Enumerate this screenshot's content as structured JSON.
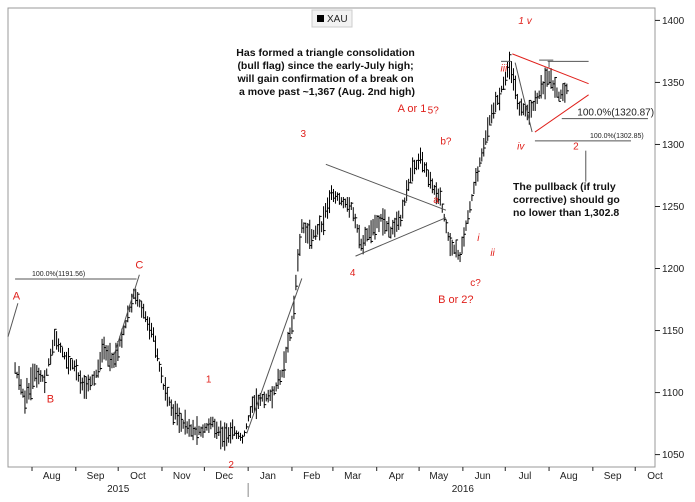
{
  "chart_data": {
    "type": "ohlc",
    "legend": "XAU",
    "y_ticks": [
      1050,
      1100,
      1150,
      1200,
      1250,
      1300,
      1350,
      1400
    ],
    "ylim": [
      1040,
      1410
    ],
    "month_ticks": [
      "Aug",
      "Sep",
      "Oct",
      "Nov",
      "Dec",
      "Jan",
      "Feb",
      "Mar",
      "Apr",
      "May",
      "Jun",
      "Jul",
      "Aug",
      "Sep",
      "Oct"
    ],
    "year_labels": [
      "2015",
      "2016"
    ],
    "series_close": [
      {
        "date": "2015-07-20",
        "value": 1120
      },
      {
        "date": "2015-07-27",
        "value": 1095
      },
      {
        "date": "2015-08-03",
        "value": 1115
      },
      {
        "date": "2015-08-10",
        "value": 1110
      },
      {
        "date": "2015-08-17",
        "value": 1145
      },
      {
        "date": "2015-08-24",
        "value": 1130
      },
      {
        "date": "2015-08-31",
        "value": 1120
      },
      {
        "date": "2015-09-07",
        "value": 1105
      },
      {
        "date": "2015-09-14",
        "value": 1110
      },
      {
        "date": "2015-09-21",
        "value": 1135
      },
      {
        "date": "2015-09-28",
        "value": 1125
      },
      {
        "date": "2015-10-05",
        "value": 1150
      },
      {
        "date": "2015-10-12",
        "value": 1180
      },
      {
        "date": "2015-10-19",
        "value": 1165
      },
      {
        "date": "2015-10-26",
        "value": 1145
      },
      {
        "date": "2015-11-02",
        "value": 1105
      },
      {
        "date": "2015-11-09",
        "value": 1085
      },
      {
        "date": "2015-11-16",
        "value": 1075
      },
      {
        "date": "2015-11-23",
        "value": 1068
      },
      {
        "date": "2015-11-30",
        "value": 1070
      },
      {
        "date": "2015-12-07",
        "value": 1075
      },
      {
        "date": "2015-12-14",
        "value": 1065
      },
      {
        "date": "2015-12-21",
        "value": 1070
      },
      {
        "date": "2015-12-28",
        "value": 1062
      },
      {
        "date": "2016-01-04",
        "value": 1090
      },
      {
        "date": "2016-01-11",
        "value": 1095
      },
      {
        "date": "2016-01-18",
        "value": 1098
      },
      {
        "date": "2016-01-25",
        "value": 1115
      },
      {
        "date": "2016-02-01",
        "value": 1155
      },
      {
        "date": "2016-02-08",
        "value": 1235
      },
      {
        "date": "2016-02-15",
        "value": 1225
      },
      {
        "date": "2016-02-22",
        "value": 1235
      },
      {
        "date": "2016-02-29",
        "value": 1260
      },
      {
        "date": "2016-03-07",
        "value": 1255
      },
      {
        "date": "2016-03-14",
        "value": 1250
      },
      {
        "date": "2016-03-21",
        "value": 1220
      },
      {
        "date": "2016-03-28",
        "value": 1230
      },
      {
        "date": "2016-04-04",
        "value": 1240
      },
      {
        "date": "2016-04-11",
        "value": 1230
      },
      {
        "date": "2016-04-18",
        "value": 1240
      },
      {
        "date": "2016-04-25",
        "value": 1275
      },
      {
        "date": "2016-05-02",
        "value": 1290
      },
      {
        "date": "2016-05-09",
        "value": 1270
      },
      {
        "date": "2016-05-16",
        "value": 1255
      },
      {
        "date": "2016-05-23",
        "value": 1220
      },
      {
        "date": "2016-05-30",
        "value": 1210
      },
      {
        "date": "2016-06-06",
        "value": 1250
      },
      {
        "date": "2016-06-13",
        "value": 1285
      },
      {
        "date": "2016-06-20",
        "value": 1320
      },
      {
        "date": "2016-06-27",
        "value": 1340
      },
      {
        "date": "2016-07-04",
        "value": 1365
      },
      {
        "date": "2016-07-11",
        "value": 1330
      },
      {
        "date": "2016-07-18",
        "value": 1325
      },
      {
        "date": "2016-07-25",
        "value": 1340
      },
      {
        "date": "2016-08-01",
        "value": 1355
      },
      {
        "date": "2016-08-08",
        "value": 1340
      },
      {
        "date": "2016-08-15",
        "value": 1345
      }
    ],
    "wave_labels": [
      {
        "label": "A",
        "date": "2015-07-21",
        "value": 1175
      },
      {
        "label": "B",
        "date": "2015-08-14",
        "value": 1092
      },
      {
        "label": "C",
        "date": "2015-10-16",
        "value": 1200
      },
      {
        "label": "1",
        "date": "2015-12-04",
        "value": 1108
      },
      {
        "label": "2",
        "date": "2015-12-20",
        "value": 1039
      },
      {
        "label": "3",
        "date": "2016-02-09",
        "value": 1306
      },
      {
        "label": "4",
        "date": "2016-03-15",
        "value": 1194
      },
      {
        "label": "A or 1",
        "date": "2016-04-26",
        "value": 1326
      },
      {
        "label": "5?",
        "date": "2016-05-11",
        "value": 1325
      },
      {
        "label": "b?",
        "date": "2016-05-20",
        "value": 1300
      },
      {
        "label": "a",
        "date": "2016-05-13",
        "value": 1253
      },
      {
        "label": "c?",
        "date": "2016-06-10",
        "value": 1186
      },
      {
        "label": "B or 2?",
        "date": "2016-05-27",
        "value": 1172
      },
      {
        "label": "i",
        "date": "2016-06-12",
        "value": 1222
      },
      {
        "label": "ii",
        "date": "2016-06-22",
        "value": 1210
      },
      {
        "label": "iii",
        "date": "2016-06-30",
        "value": 1359
      },
      {
        "label": "iv",
        "date": "2016-07-12",
        "value": 1296
      },
      {
        "label": "1 v",
        "date": "2016-07-15",
        "value": 1397
      },
      {
        "label": "2",
        "date": "2016-08-20",
        "value": 1296
      }
    ],
    "fib_levels": [
      {
        "label": "100.0%(1191.56)",
        "value": 1191.56
      },
      {
        "label": "100.0%(1320.87)",
        "value": 1320.87
      },
      {
        "label": "100.0%(1302.85)",
        "value": 1302.85
      }
    ],
    "annotations": [
      {
        "lines": [
          "Has formed a triangle consolidation",
          "(bull flag) since the early-July high;",
          "will gain confirmation of a break on",
          "a move past ~1,367 (Aug. 2nd high)"
        ]
      },
      {
        "lines": [
          "The pullback (if truly",
          "corrective) should go",
          "no lower than 1,302.8"
        ]
      }
    ],
    "colors": {
      "price": "#000000",
      "waves": "#e0201b",
      "trendline_red": "#e0201b",
      "trendline_gray": "#555555"
    }
  }
}
